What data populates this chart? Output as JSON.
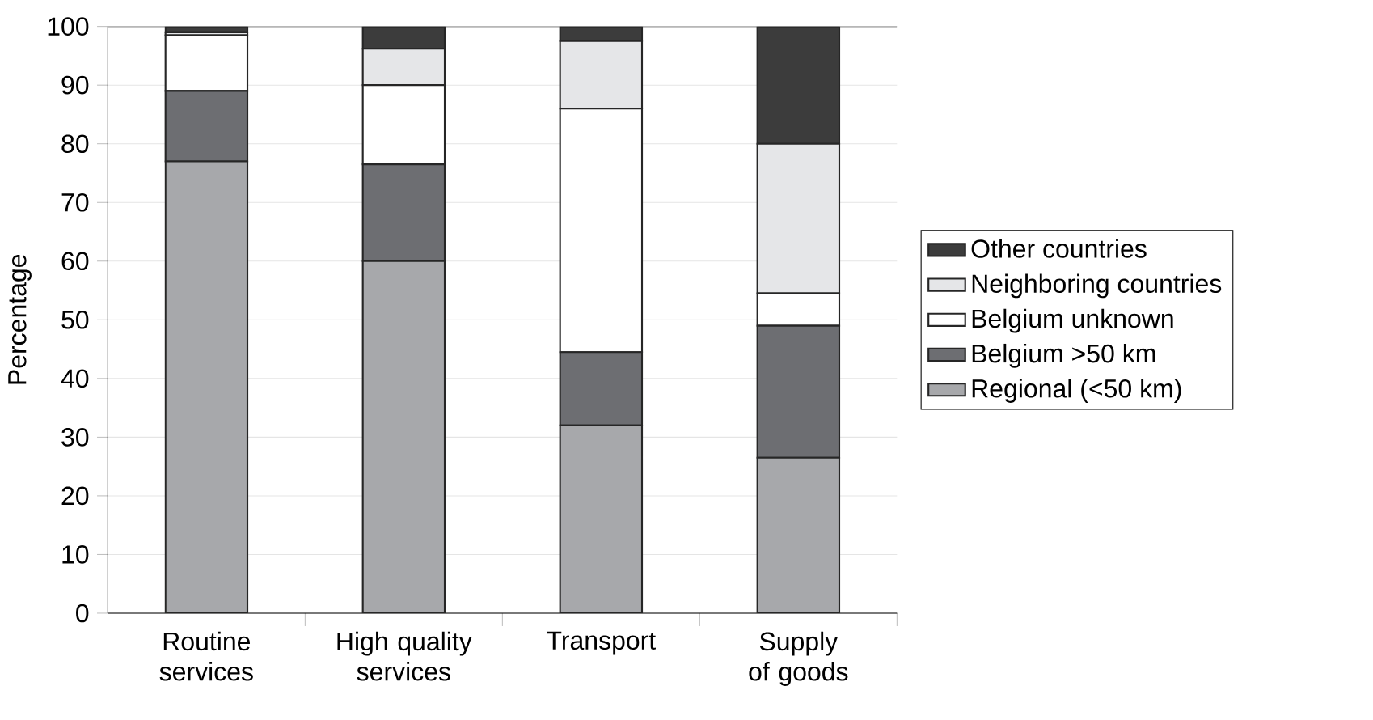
{
  "chart_data": {
    "type": "bar",
    "stacked": true,
    "ylabel": "Percentage",
    "categories": [
      "Routine services",
      "High quality services",
      "Transport",
      "Supply of goods"
    ],
    "series": [
      {
        "name": "Regional (<50 km)",
        "color": "#a7a8ab",
        "values": [
          77,
          60,
          32,
          26.5
        ]
      },
      {
        "name": "Belgium >50 km",
        "color": "#6d6e72",
        "values": [
          12,
          16.5,
          12.5,
          22.5
        ]
      },
      {
        "name": "Belgium unknown",
        "color": "#ffffff",
        "values": [
          9.5,
          13.5,
          41.5,
          5.5
        ]
      },
      {
        "name": "Neighboring countries",
        "color": "#e5e6e8",
        "values": [
          0.5,
          6.2,
          11.5,
          25.5
        ]
      },
      {
        "name": "Other countries",
        "color": "#3c3c3c",
        "values": [
          1,
          3.8,
          2.5,
          20
        ]
      }
    ],
    "ylim": [
      0,
      100
    ],
    "yticks": [
      0,
      10,
      20,
      30,
      40,
      50,
      60,
      70,
      80,
      90,
      100
    ],
    "grid": "y",
    "legend": "right"
  }
}
